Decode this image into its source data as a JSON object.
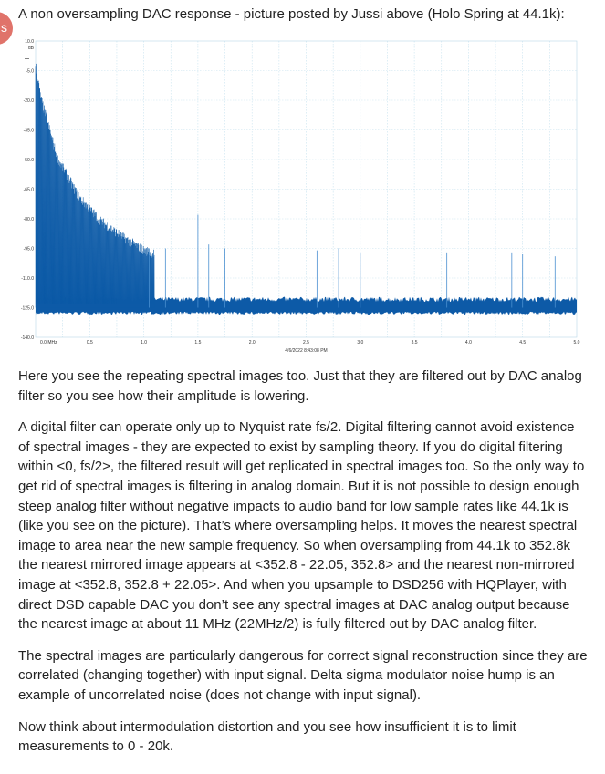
{
  "post": {
    "avatar_letter": "s",
    "intro": "A non oversampling DAC response - picture posted by Jussi above (Holo Spring at 44.1k):",
    "paragraphs": [
      "Here you see the repeating spectral images too. Just that they are filtered out by DAC analog filter so you see how their amplitude is lowering.",
      "A digital filter can operate only up to Nyquist rate fs/2. Digital filtering cannot avoid existence of spectral images - they are expected to exist by sampling theory. If you do digital filtering within <0, fs/2>, the filtered result will get replicated in spectral images too. So the only way to get rid of spectral images is filtering in analog domain. But it is not possible to design enough steep analog filter without negative impacts to audio band for low sample rates like 44.1k is (like you see on the picture). That’s where oversampling helps. It moves the nearest spectral image to area near the new sample frequency. So when oversampling from 44.1k to 352.8k the nearest mirrored image appears at <352.8 - 22.05, 352.8> and the nearest non-mirrored image at <352.8, 352.8 + 22.05>. And when you upsample to DSD256 with HQPlayer, with direct DSD capable DAC you don’t see any spectral images at DAC analog output because the nearest image at about 11 MHz (22MHz/2) is fully filtered out by DAC analog filter.",
      "The spectral images are particularly dangerous for correct signal reconstruction since they are correlated (changing together) with input signal. Delta sigma modulator noise hump is an example of uncorrelated noise (does not change with input signal).",
      "Now think about intermodulation distortion and you see how insufficient it is to limit measurements to 0 - 20k."
    ]
  },
  "chart_data": {
    "type": "area",
    "title": "",
    "xlabel": "",
    "ylabel": "dB",
    "timestamp": "4/6/2022 8:43:08 PM",
    "x_unit_label": "0.0 MHz",
    "xlim": [
      0,
      5.0
    ],
    "ylim": [
      -140,
      10
    ],
    "x_ticks": [
      "0.5",
      "1.0",
      "1.5",
      "2.0",
      "2.5",
      "3.0",
      "3.5",
      "4.0",
      "4.5",
      "5.0"
    ],
    "y_ticks": [
      "10.0",
      "-5.0",
      "-20.0",
      "-35.0",
      "-50.0",
      "-65.0",
      "-80.0",
      "-95.0",
      "-110.0",
      "-125.0",
      "-140.0"
    ],
    "grid": true,
    "series": [
      {
        "color": "#0d5aa7",
        "noise_floor_db": -125,
        "spectral_image_spacing_mhz": 0.0441,
        "envelope": {
          "x": [
            0.0,
            0.05,
            0.2,
            0.4,
            0.6,
            0.8,
            1.0,
            1.5,
            2.0,
            3.0,
            4.0,
            5.0
          ],
          "y": [
            -3,
            -20,
            -50,
            -70,
            -82,
            -90,
            -97,
            -105,
            -108,
            -110,
            -112,
            -112
          ]
        },
        "spikes": [
          {
            "x": 1.5,
            "y": -78
          },
          {
            "x": 1.05,
            "y": -95
          },
          {
            "x": 1.2,
            "y": -95
          },
          {
            "x": 1.6,
            "y": -93
          },
          {
            "x": 1.75,
            "y": -95
          },
          {
            "x": 2.6,
            "y": -96
          },
          {
            "x": 2.8,
            "y": -95
          },
          {
            "x": 3.0,
            "y": -97
          },
          {
            "x": 3.8,
            "y": -97
          },
          {
            "x": 4.4,
            "y": -97
          },
          {
            "x": 4.5,
            "y": -98
          },
          {
            "x": 4.8,
            "y": -99
          }
        ]
      }
    ]
  }
}
